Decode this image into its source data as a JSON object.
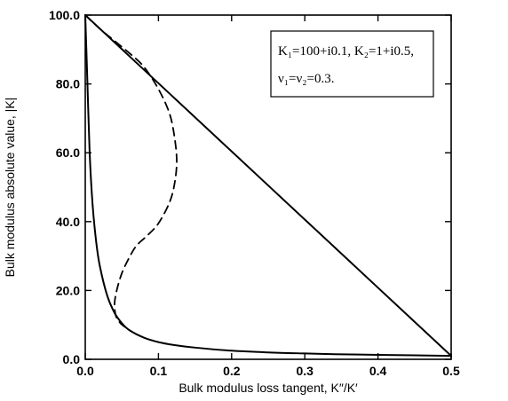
{
  "chart_data": {
    "type": "line",
    "title": "",
    "xlabel": "Bulk modulus loss tangent, K″/K′",
    "ylabel": "Bulk modulus absolute value, |K|",
    "xlim": [
      0.0,
      0.5
    ],
    "ylim": [
      0.0,
      100.0
    ],
    "x_ticks": [
      "0.0",
      "0.1",
      "0.2",
      "0.3",
      "0.4",
      "0.5"
    ],
    "y_ticks": [
      "0.0",
      "20.0",
      "40.0",
      "60.0",
      "80.0",
      "100.0"
    ],
    "grid": false,
    "legend_position": "top-right",
    "annotation_lines": [
      "K₁=100+i0.1,  K₂=1+i0.5,",
      "ν₁=ν₂=0.3."
    ],
    "series": [
      {
        "style": "solid",
        "x": [
          0.5,
          0.4,
          0.3,
          0.2,
          0.1,
          0.05,
          0.0
        ],
        "y": [
          1.0,
          20.8,
          40.6,
          60.4,
          80.2,
          90.1,
          100.0
        ]
      },
      {
        "style": "solid",
        "x": [
          0.5,
          0.45,
          0.4,
          0.35,
          0.3,
          0.25,
          0.2,
          0.15,
          0.12,
          0.1,
          0.08,
          0.06,
          0.05,
          0.04,
          0.03,
          0.02,
          0.015,
          0.01,
          0.006,
          0.003,
          0.0
        ],
        "y": [
          1.0,
          1.15,
          1.3,
          1.45,
          1.7,
          2.0,
          2.5,
          3.4,
          4.2,
          5.0,
          6.3,
          8.5,
          10.5,
          13.5,
          18.5,
          27.0,
          34.0,
          45.0,
          60.0,
          80.0,
          100.0
        ]
      },
      {
        "style": "dashed",
        "x": [
          0.0,
          0.02,
          0.04,
          0.06,
          0.08,
          0.1,
          0.115,
          0.122,
          0.125,
          0.122,
          0.115,
          0.1,
          0.085,
          0.07,
          0.06,
          0.05,
          0.043,
          0.04,
          0.042,
          0.048,
          0.055,
          0.06
        ],
        "y": [
          100.0,
          96.0,
          92.5,
          89.0,
          85.0,
          78.5,
          71.5,
          64.5,
          57.5,
          51.0,
          45.5,
          39.5,
          36.0,
          33.0,
          29.5,
          25.0,
          20.0,
          16.0,
          12.5,
          10.5,
          9.3,
          8.8
        ]
      }
    ]
  }
}
